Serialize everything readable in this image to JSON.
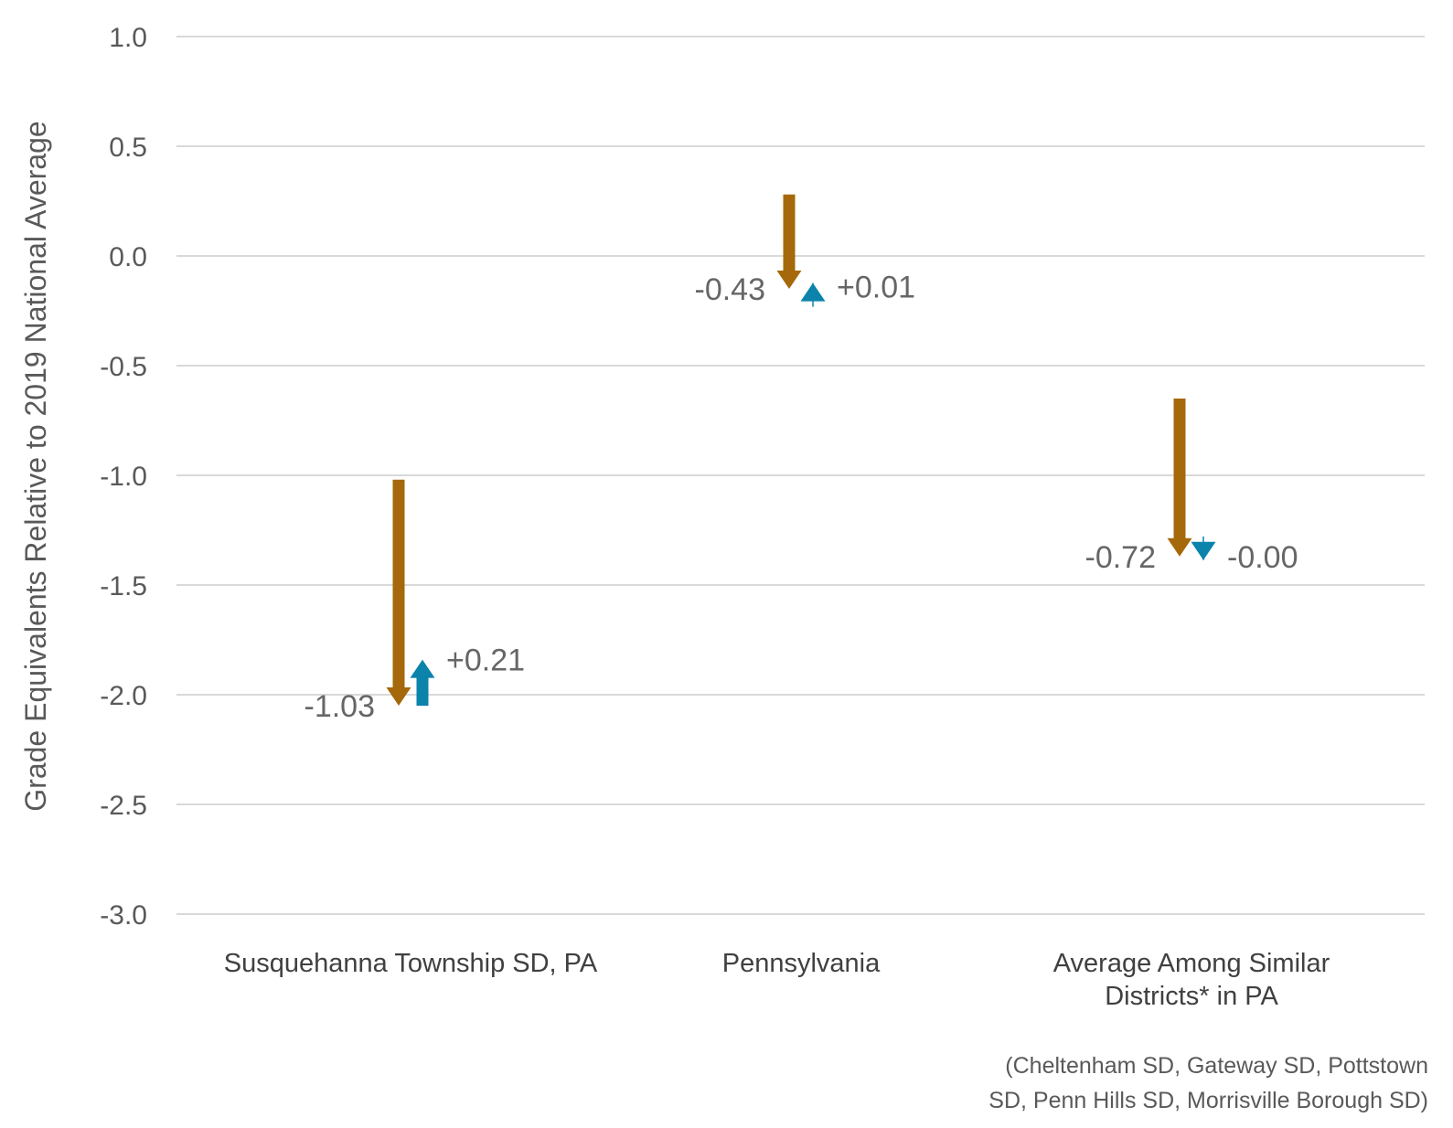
{
  "chart_data": {
    "type": "arrow",
    "ylabel": "Grade Equivalents Relative to 2019 National Average",
    "ylim": [
      -3.0,
      1.0
    ],
    "yticks": [
      1.0,
      0.5,
      0.0,
      -0.5,
      -1.0,
      -1.5,
      -2.0,
      -2.5,
      -3.0
    ],
    "ytick_labels": [
      "1.0",
      "0.5",
      "0.0",
      "-0.5",
      "-1.0",
      "-1.5",
      "-2.0",
      "-2.5",
      "-3.0"
    ],
    "grid": true,
    "categories": [
      {
        "lines": [
          "Susquehanna Township SD, PA"
        ]
      },
      {
        "lines": [
          "Pennsylvania"
        ]
      },
      {
        "lines": [
          "Average Among Similar",
          "Districts* in PA"
        ]
      }
    ],
    "series": [
      {
        "color": "#A5680A",
        "points": [
          {
            "from": -1.02,
            "to": -2.05,
            "label": "-1.03"
          },
          {
            "from": 0.28,
            "to": -0.15,
            "label": "-0.43"
          },
          {
            "from": -0.65,
            "to": -1.37,
            "label": "-0.72"
          }
        ]
      },
      {
        "color": "#0B83AB",
        "points": [
          {
            "from": -2.05,
            "to": -1.84,
            "label": "+0.21"
          },
          {
            "from": -0.15,
            "to": -0.14,
            "label": "+0.01"
          },
          {
            "from": -1.37,
            "to": -1.37,
            "label": "-0.00"
          }
        ]
      }
    ],
    "footnote": [
      "(Cheltenham SD, Gateway SD, Pottstown",
      "SD, Penn Hills SD, Morrisville Borough SD)"
    ]
  }
}
